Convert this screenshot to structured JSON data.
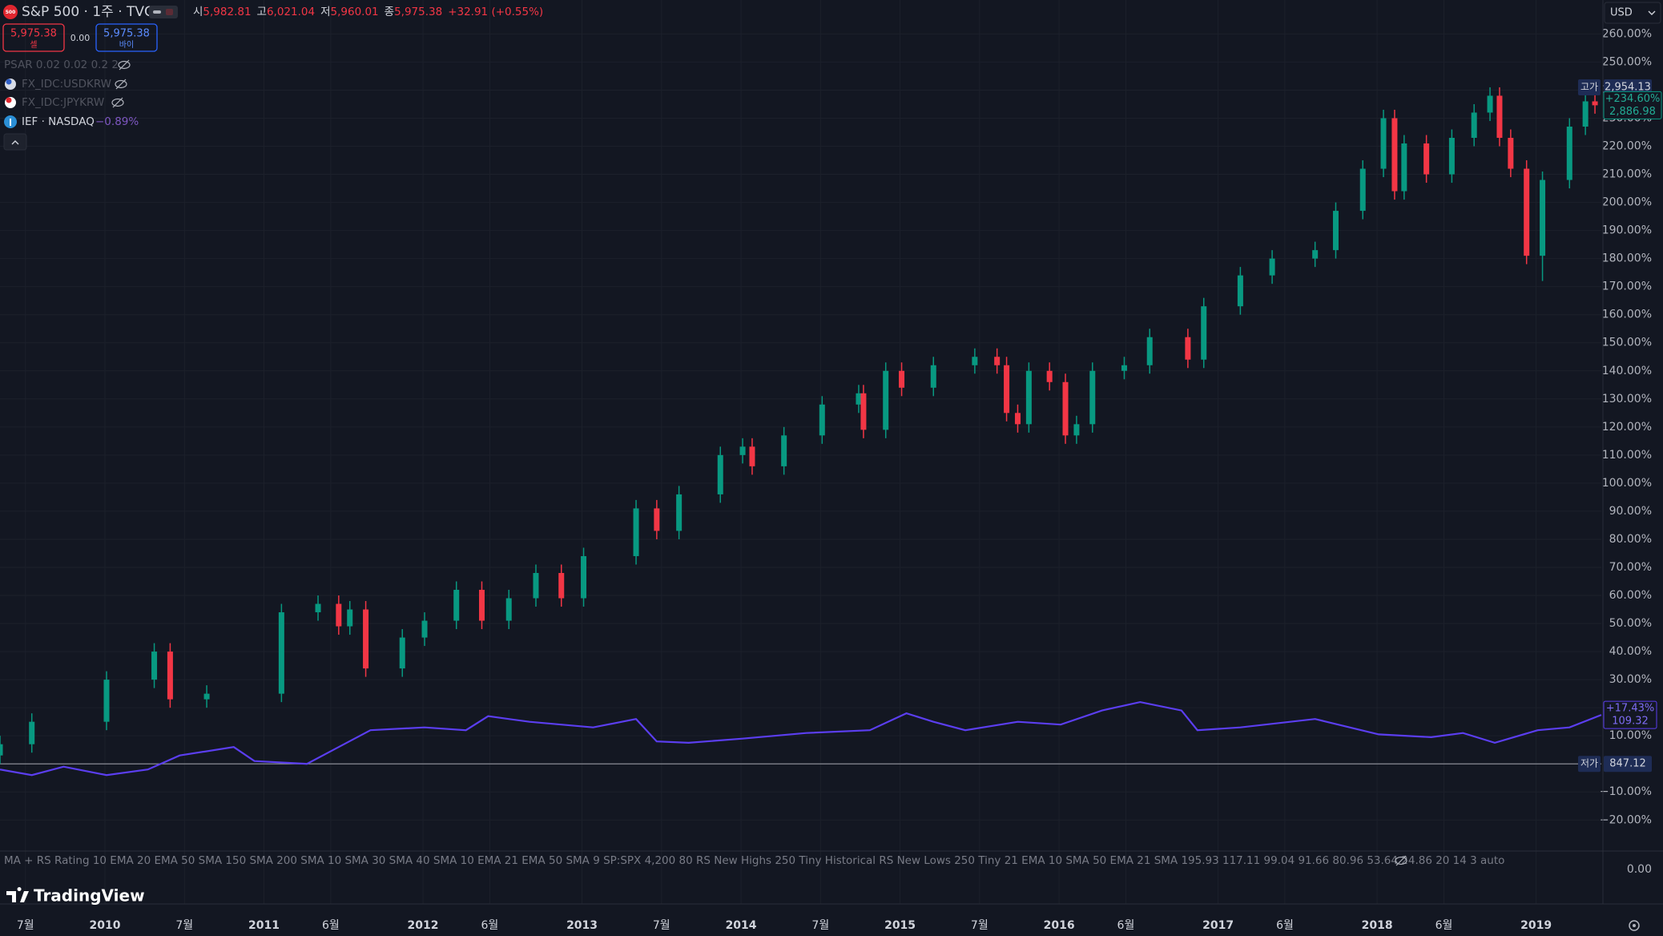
{
  "header": {
    "badge": "500",
    "symbol": "S&P 500 · 1주 · TVC",
    "ohlc": [
      {
        "label": "시",
        "value": "5,982.81"
      },
      {
        "label": "고",
        "value": "6,021.04"
      },
      {
        "label": "저",
        "value": "5,960.01"
      },
      {
        "label": "종",
        "value": "5,975.38"
      }
    ],
    "change": "+32.91 (+0.55%)"
  },
  "trade": {
    "sell_price": "5,975.38",
    "sell_label": "셀",
    "spread": "0.00",
    "buy_price": "5,975.38",
    "buy_label": "바이"
  },
  "legend": {
    "psar": "PSAR 0.02 0.02 0.2 2",
    "symbols": [
      "FX_IDC:USDKRW",
      "FX_IDC:JPYKRW"
    ],
    "ief_change": "−0.89%"
  },
  "currency": "USD",
  "indicator_pane": {
    "text": "MA + RS Rating 10 EMA 20 EMA 50 SMA 150 SMA 200 SMA 10 SMA 30 SMA 40 SMA 10 EMA 21 EMA 50 SMA 9 SP:SPX 4,200 80 RS New Highs 250 Tiny Historical RS New Lows 250 Tiny 21 EMA 10 SMA 50 EMA 21 SMA 195.93 117.11 99.04 91.66 80.96 53.64 24.86 20 14 3 auto",
    "yticks": [
      {
        "value": 0,
        "label": "0.00"
      }
    ]
  },
  "logo": "TradingView",
  "chart_data": {
    "type": "candlestick",
    "xlim": [
      2009.34,
      2019.41
    ],
    "xticks": [
      {
        "value": 2009.5,
        "label": "7월"
      },
      2010,
      {
        "value": 2010.5,
        "label": "7월"
      },
      2011,
      {
        "value": 2011.42,
        "label": "6월"
      },
      2012,
      {
        "value": 2012.42,
        "label": "6월"
      },
      2013,
      {
        "value": 2013.5,
        "label": "7월"
      },
      2014,
      {
        "value": 2014.5,
        "label": "7월"
      },
      2015,
      {
        "value": 2015.5,
        "label": "7월"
      },
      2016,
      {
        "value": 2016.42,
        "label": "6월"
      },
      2017,
      {
        "value": 2017.42,
        "label": "6월"
      },
      2018,
      {
        "value": 2018.42,
        "label": "6월"
      },
      2019
    ],
    "ylim": [
      -30.2,
      272.1
    ],
    "yticks": [
      {
        "value": -20,
        "label": "−20.00%"
      },
      {
        "value": -10,
        "label": "−10.00%"
      },
      {
        "value": 0,
        "label": "0.00%"
      },
      {
        "value": 10,
        "label": "10.00%"
      },
      {
        "value": 20,
        "label": "20.00%"
      },
      {
        "value": 30,
        "label": "30.00%"
      },
      {
        "value": 40,
        "label": "40.00%"
      },
      {
        "value": 50,
        "label": "50.00%"
      },
      {
        "value": 60,
        "label": "60.00%"
      },
      {
        "value": 70,
        "label": "70.00%"
      },
      {
        "value": 80,
        "label": "80.00%"
      },
      {
        "value": 90,
        "label": "90.00%"
      },
      {
        "value": 100,
        "label": "100.00%"
      },
      {
        "value": 110,
        "label": "110.00%"
      },
      {
        "value": 120,
        "label": "120.00%"
      },
      {
        "value": 130,
        "label": "130.00%"
      },
      {
        "value": 140,
        "label": "140.00%"
      },
      {
        "value": 150,
        "label": "150.00%"
      },
      {
        "value": 160,
        "label": "160.00%"
      },
      {
        "value": 170,
        "label": "170.00%"
      },
      {
        "value": 180,
        "label": "180.00%"
      },
      {
        "value": 190,
        "label": "190.00%"
      },
      {
        "value": 200,
        "label": "200.00%"
      },
      {
        "value": 210,
        "label": "210.00%"
      },
      {
        "value": 220,
        "label": "220.00%"
      },
      {
        "value": 230,
        "label": "230.00%"
      },
      {
        "value": 240,
        "label": "240.00%"
      },
      {
        "value": 250,
        "label": "250.00%"
      },
      {
        "value": 260,
        "label": "260.00%"
      }
    ],
    "grid": true,
    "series": [
      {
        "type": "candlestick",
        "up_color": "#089981",
        "down_color": "#f23645",
        "x": [
          2009.34,
          2009.54,
          2010.01,
          2010.31,
          2010.41,
          2010.64,
          2011.11,
          2011.34,
          2011.47,
          2011.54,
          2011.64,
          2011.87,
          2012.01,
          2012.21,
          2012.37,
          2012.54,
          2012.71,
          2012.87,
          2013.01,
          2013.34,
          2013.47,
          2013.61,
          2013.87,
          2014.01,
          2014.07,
          2014.27,
          2014.51,
          2014.74,
          2014.77,
          2014.91,
          2015.01,
          2015.21,
          2015.47,
          2015.61,
          2015.67,
          2015.74,
          2015.81,
          2015.94,
          2016.04,
          2016.11,
          2016.21,
          2016.41,
          2016.57,
          2016.81,
          2016.91,
          2017.14,
          2017.34,
          2017.61,
          2017.74,
          2017.91,
          2018.04,
          2018.11,
          2018.17,
          2018.31,
          2018.47,
          2018.61,
          2018.71,
          2018.77,
          2018.84,
          2018.94,
          2019.04,
          2019.21,
          2019.31,
          2019.37
        ],
        "open": [
          3,
          7,
          15,
          30,
          40,
          23,
          25,
          54,
          57,
          49,
          55,
          34,
          45,
          51,
          62,
          51,
          59,
          68,
          59,
          74,
          91,
          83,
          96,
          110,
          113,
          106,
          117,
          128,
          132,
          119,
          140,
          134,
          142,
          145,
          142,
          125,
          121,
          140,
          136,
          117,
          121,
          140,
          142,
          152,
          144,
          163,
          174,
          180,
          183,
          197,
          212,
          230,
          204,
          221,
          210,
          223,
          232,
          238,
          223,
          212,
          181,
          208,
          227,
          236
        ],
        "high": [
          10,
          18,
          33,
          43,
          43,
          28,
          57,
          60,
          60,
          58,
          58,
          48,
          54,
          65,
          65,
          62,
          71,
          71,
          77,
          94,
          94,
          99,
          113,
          116,
          116,
          120,
          131,
          135,
          135,
          143,
          143,
          145,
          148,
          148,
          145,
          128,
          143,
          143,
          139,
          124,
          143,
          145,
          155,
          155,
          166,
          177,
          183,
          186,
          200,
          215,
          233,
          233,
          224,
          224,
          226,
          235,
          241,
          241,
          226,
          215,
          211,
          230,
          239,
          239
        ],
        "low": [
          0,
          4,
          12,
          27,
          20,
          20,
          22,
          51,
          46,
          46,
          31,
          31,
          42,
          48,
          48,
          48,
          56,
          56,
          56,
          71,
          80,
          80,
          93,
          107,
          103,
          103,
          114,
          125,
          116,
          116,
          131,
          131,
          139,
          139,
          122,
          118,
          118,
          133,
          114,
          114,
          118,
          137,
          139,
          141,
          141,
          160,
          171,
          177,
          180,
          194,
          209,
          201,
          201,
          207,
          207,
          220,
          229,
          220,
          209,
          178,
          172,
          205,
          224,
          231.6
        ],
        "close": [
          7,
          15,
          30,
          40,
          23,
          25,
          54,
          57,
          49,
          55,
          34,
          45,
          51,
          62,
          51,
          59,
          68,
          59,
          74,
          91,
          83,
          96,
          110,
          113,
          106,
          117,
          128,
          132,
          119,
          140,
          134,
          142,
          145,
          142,
          125,
          121,
          140,
          136,
          117,
          121,
          140,
          142,
          152,
          144,
          163,
          174,
          180,
          183,
          197,
          212,
          230,
          204,
          221,
          210,
          223,
          232,
          238,
          223,
          212,
          181,
          208,
          227,
          236,
          234.6
        ],
        "high_label": {
          "tag": "고가",
          "value": "2,954.13"
        },
        "low_label": {
          "tag": "저가",
          "value": "847.12"
        },
        "last_label": {
          "value": 234.6,
          "label": "+234.60%"
        },
        "last_price": "2,886.98"
      },
      {
        "type": "line",
        "name": "IEF · NASDAQ",
        "color": "#5b3ef0",
        "x": [
          2009.34,
          2009.54,
          2009.74,
          2010.01,
          2010.27,
          2010.47,
          2010.81,
          2010.94,
          2011.27,
          2011.47,
          2011.67,
          2012.01,
          2012.27,
          2012.41,
          2012.67,
          2013.07,
          2013.34,
          2013.47,
          2013.67,
          2014.01,
          2014.41,
          2014.81,
          2015.04,
          2015.21,
          2015.41,
          2015.74,
          2016.01,
          2016.27,
          2016.51,
          2016.77,
          2016.87,
          2017.14,
          2017.61,
          2018.01,
          2018.34,
          2018.54,
          2018.74,
          2019.01,
          2019.21,
          2019.41
        ],
        "values": [
          -2,
          -4,
          -1,
          -4,
          -2,
          3,
          6,
          1,
          0,
          6,
          12,
          13,
          12,
          17,
          15,
          13,
          16,
          8,
          7.5,
          9,
          11,
          12,
          18,
          15,
          12,
          15,
          14,
          19,
          22,
          19,
          12,
          13,
          16,
          10.5,
          9.5,
          11,
          7.5,
          12,
          13,
          17.43
        ],
        "last_label": {
          "value": 17.43,
          "label": "+17.43%"
        },
        "last_price": "109.32"
      }
    ]
  }
}
